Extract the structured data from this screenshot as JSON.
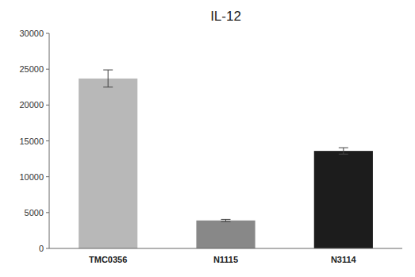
{
  "chart_data": {
    "type": "bar",
    "title": "IL-12",
    "categories": [
      "TMC0356",
      "N1115",
      "N3114"
    ],
    "values": [
      23700,
      3900,
      13600
    ],
    "errors": [
      1200,
      150,
      450
    ],
    "colors": [
      "#b8b8b8",
      "#888888",
      "#1c1c1c"
    ],
    "ylim": [
      0,
      30000
    ],
    "yticks": [
      0,
      5000,
      10000,
      15000,
      20000,
      25000,
      30000
    ],
    "grid": false
  }
}
